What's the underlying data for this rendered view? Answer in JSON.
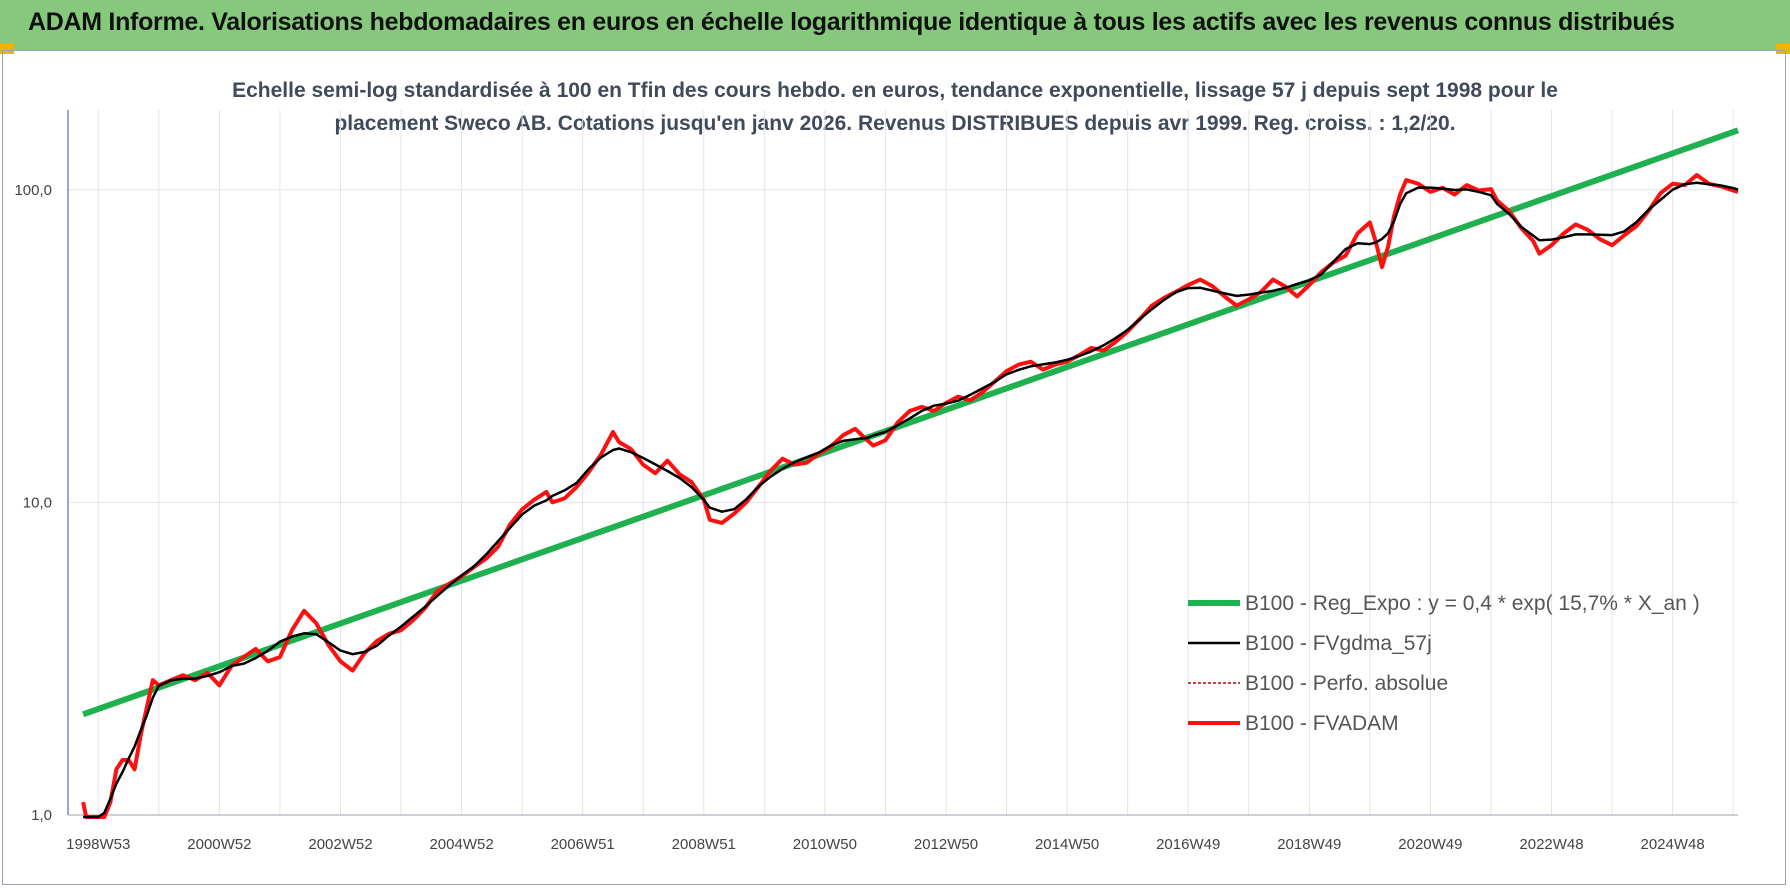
{
  "banner": {
    "title": "ADAM Informe. Valorisations hebdomadaires en euros en échelle logarithmique identique à tous les actifs avec les revenus connus distribués"
  },
  "colors": {
    "banner_bg": "#86c97c",
    "corner_accent": "#f0b400",
    "regression": "#1fb04f",
    "moving_average": "#000000",
    "perfo_absolue": "#c00000",
    "fvadam": "#ff1010"
  },
  "chart_data": {
    "type": "line",
    "title_lines": [
      "Echelle semi-log standardisée à 100 en Tfin des cours hebdo. en euros, tendance exponentielle, lissage 57 j depuis sept 1998 pour le",
      "placement Sweco AB. Cotations jusqu'en janv 2026. Revenus DISTRIBUES depuis avr 1999. Reg. croiss. : 1,2/20."
    ],
    "y_scale": "log",
    "ylim": [
      1,
      180
    ],
    "y_ticks": [
      {
        "value": 1,
        "label": "1,0"
      },
      {
        "value": 10,
        "label": "10,0"
      },
      {
        "value": 100,
        "label": "100,0"
      }
    ],
    "xlim": [
      1998.5,
      2026.08
    ],
    "x_ticks": [
      {
        "value": 1999.0,
        "label": "1998W53"
      },
      {
        "value": 2001.0,
        "label": "2000W52"
      },
      {
        "value": 2003.0,
        "label": "2002W52"
      },
      {
        "value": 2005.0,
        "label": "2004W52"
      },
      {
        "value": 2007.0,
        "label": "2006W51"
      },
      {
        "value": 2009.0,
        "label": "2008W51"
      },
      {
        "value": 2011.0,
        "label": "2010W50"
      },
      {
        "value": 2013.0,
        "label": "2012W50"
      },
      {
        "value": 2015.0,
        "label": "2014W50"
      },
      {
        "value": 2017.0,
        "label": "2016W49"
      },
      {
        "value": 2019.0,
        "label": "2018W49"
      },
      {
        "value": 2021.0,
        "label": "2020W49"
      },
      {
        "value": 2023.0,
        "label": "2022W48"
      },
      {
        "value": 2025.0,
        "label": "2024W48"
      }
    ],
    "grid": true,
    "legend_position": "bottom-right",
    "series": [
      {
        "name": "B100 - Reg_Expo : y = 0,4 * exp( 15,7% *  X_an )",
        "style": "regression",
        "points": [
          [
            1998.75,
            2.1
          ],
          [
            2026.08,
            155
          ]
        ]
      },
      {
        "name": "B100 - FVgdma_57j",
        "style": "moving_average",
        "points": []
      },
      {
        "name": "B100 - Perfo. absolue",
        "style": "perfo_absolue",
        "points": []
      },
      {
        "name": "B100 - FVADAM",
        "style": "fvadam",
        "points": [
          [
            1998.75,
            1.1
          ],
          [
            1998.8,
            0.9
          ],
          [
            1999.0,
            0.85
          ],
          [
            1999.1,
            0.92
          ],
          [
            1999.2,
            1.1
          ],
          [
            1999.3,
            1.4
          ],
          [
            1999.4,
            1.5
          ],
          [
            1999.5,
            1.5
          ],
          [
            1999.6,
            1.4
          ],
          [
            1999.7,
            1.8
          ],
          [
            1999.8,
            2.2
          ],
          [
            1999.9,
            2.7
          ],
          [
            2000.0,
            2.6
          ],
          [
            2000.2,
            2.7
          ],
          [
            2000.4,
            2.8
          ],
          [
            2000.6,
            2.7
          ],
          [
            2000.8,
            2.85
          ],
          [
            2001.0,
            2.6
          ],
          [
            2001.2,
            3.0
          ],
          [
            2001.4,
            3.2
          ],
          [
            2001.6,
            3.4
          ],
          [
            2001.8,
            3.1
          ],
          [
            2002.0,
            3.2
          ],
          [
            2002.2,
            3.9
          ],
          [
            2002.4,
            4.5
          ],
          [
            2002.6,
            4.1
          ],
          [
            2002.8,
            3.5
          ],
          [
            2003.0,
            3.1
          ],
          [
            2003.2,
            2.9
          ],
          [
            2003.4,
            3.3
          ],
          [
            2003.6,
            3.6
          ],
          [
            2003.8,
            3.8
          ],
          [
            2004.0,
            3.9
          ],
          [
            2004.2,
            4.2
          ],
          [
            2004.4,
            4.6
          ],
          [
            2004.6,
            5.2
          ],
          [
            2004.8,
            5.5
          ],
          [
            2005.0,
            5.8
          ],
          [
            2005.2,
            6.2
          ],
          [
            2005.4,
            6.6
          ],
          [
            2005.6,
            7.2
          ],
          [
            2005.8,
            8.5
          ],
          [
            2006.0,
            9.5
          ],
          [
            2006.2,
            10.2
          ],
          [
            2006.4,
            10.8
          ],
          [
            2006.5,
            10.0
          ],
          [
            2006.7,
            10.3
          ],
          [
            2006.9,
            11.2
          ],
          [
            2007.1,
            12.5
          ],
          [
            2007.3,
            14.2
          ],
          [
            2007.5,
            16.8
          ],
          [
            2007.6,
            15.6
          ],
          [
            2007.8,
            14.8
          ],
          [
            2008.0,
            13.2
          ],
          [
            2008.2,
            12.4
          ],
          [
            2008.4,
            13.6
          ],
          [
            2008.6,
            12.3
          ],
          [
            2008.8,
            11.6
          ],
          [
            2009.0,
            10.2
          ],
          [
            2009.1,
            8.8
          ],
          [
            2009.3,
            8.6
          ],
          [
            2009.5,
            9.2
          ],
          [
            2009.7,
            10.0
          ],
          [
            2009.9,
            11.2
          ],
          [
            2010.1,
            12.6
          ],
          [
            2010.3,
            13.8
          ],
          [
            2010.5,
            13.2
          ],
          [
            2010.7,
            13.4
          ],
          [
            2010.9,
            14.3
          ],
          [
            2011.1,
            15.1
          ],
          [
            2011.3,
            16.4
          ],
          [
            2011.5,
            17.2
          ],
          [
            2011.7,
            15.8
          ],
          [
            2011.8,
            15.2
          ],
          [
            2012.0,
            15.8
          ],
          [
            2012.2,
            18.0
          ],
          [
            2012.4,
            19.6
          ],
          [
            2012.6,
            20.2
          ],
          [
            2012.8,
            19.6
          ],
          [
            2013.0,
            20.8
          ],
          [
            2013.2,
            21.8
          ],
          [
            2013.4,
            21.2
          ],
          [
            2013.6,
            22.5
          ],
          [
            2013.8,
            24.3
          ],
          [
            2014.0,
            26.3
          ],
          [
            2014.2,
            27.6
          ],
          [
            2014.4,
            28.2
          ],
          [
            2014.6,
            26.6
          ],
          [
            2014.8,
            27.6
          ],
          [
            2015.0,
            28.2
          ],
          [
            2015.2,
            29.6
          ],
          [
            2015.4,
            31.2
          ],
          [
            2015.6,
            30.6
          ],
          [
            2015.8,
            32.6
          ],
          [
            2016.0,
            35.2
          ],
          [
            2016.2,
            38.6
          ],
          [
            2016.4,
            42.6
          ],
          [
            2016.6,
            45.1
          ],
          [
            2016.8,
            47.2
          ],
          [
            2017.0,
            49.6
          ],
          [
            2017.2,
            51.6
          ],
          [
            2017.4,
            49.2
          ],
          [
            2017.6,
            45.6
          ],
          [
            2017.8,
            42.6
          ],
          [
            2018.0,
            44.6
          ],
          [
            2018.2,
            47.1
          ],
          [
            2018.4,
            51.6
          ],
          [
            2018.6,
            49.1
          ],
          [
            2018.8,
            45.6
          ],
          [
            2019.0,
            49.6
          ],
          [
            2019.2,
            54.6
          ],
          [
            2019.4,
            58.6
          ],
          [
            2019.6,
            61.6
          ],
          [
            2019.8,
            72.6
          ],
          [
            2020.0,
            78.6
          ],
          [
            2020.1,
            68.0
          ],
          [
            2020.2,
            56.6
          ],
          [
            2020.3,
            65.6
          ],
          [
            2020.4,
            82.6
          ],
          [
            2020.5,
            96.6
          ],
          [
            2020.6,
            107.5
          ],
          [
            2020.8,
            104.5
          ],
          [
            2021.0,
            98.5
          ],
          [
            2021.2,
            101.5
          ],
          [
            2021.4,
            96.5
          ],
          [
            2021.6,
            103.5
          ],
          [
            2021.8,
            99.5
          ],
          [
            2022.0,
            100.5
          ],
          [
            2022.1,
            92.5
          ],
          [
            2022.3,
            85.5
          ],
          [
            2022.5,
            75.5
          ],
          [
            2022.7,
            68.5
          ],
          [
            2022.8,
            62.5
          ],
          [
            2023.0,
            66.5
          ],
          [
            2023.2,
            72.5
          ],
          [
            2023.4,
            77.5
          ],
          [
            2023.6,
            74.5
          ],
          [
            2023.8,
            69.5
          ],
          [
            2024.0,
            66.5
          ],
          [
            2024.2,
            71.5
          ],
          [
            2024.4,
            76.5
          ],
          [
            2024.6,
            85.5
          ],
          [
            2024.8,
            97.5
          ],
          [
            2025.0,
            104.5
          ],
          [
            2025.2,
            103.5
          ],
          [
            2025.4,
            111.5
          ],
          [
            2025.6,
            104.5
          ],
          [
            2025.8,
            102.5
          ],
          [
            2026.0,
            99.5
          ],
          [
            2026.08,
            98.5
          ]
        ]
      }
    ]
  }
}
